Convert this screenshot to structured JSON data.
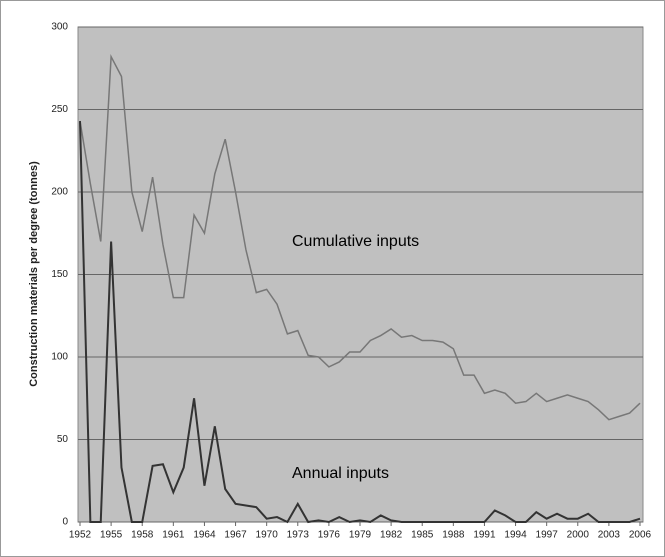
{
  "chart_data": {
    "type": "line",
    "y_label": "Construction materials per degree (tonnes)",
    "x": [
      1952,
      1953,
      1954,
      1955,
      1956,
      1957,
      1958,
      1959,
      1960,
      1961,
      1962,
      1963,
      1964,
      1965,
      1966,
      1967,
      1968,
      1969,
      1970,
      1971,
      1972,
      1973,
      1974,
      1975,
      1976,
      1977,
      1978,
      1979,
      1980,
      1981,
      1982,
      1983,
      1984,
      1985,
      1986,
      1987,
      1988,
      1989,
      1990,
      1991,
      1992,
      1993,
      1994,
      1995,
      1996,
      1997,
      1998,
      1999,
      2000,
      2001,
      2002,
      2003,
      2004,
      2005,
      2006
    ],
    "series": [
      {
        "name": "Cumulative inputs",
        "color": "#777777",
        "values": [
          243,
          205,
          170,
          282,
          270,
          200,
          176,
          209,
          168,
          136,
          136,
          186,
          175,
          211,
          232,
          200,
          165,
          139,
          141,
          132,
          114,
          116,
          101,
          100,
          94,
          97,
          103,
          103,
          110,
          113,
          117,
          112,
          113,
          110,
          110,
          109,
          105,
          89,
          89,
          78,
          80,
          78,
          72,
          73,
          78,
          73,
          75,
          77,
          75,
          73,
          68,
          62,
          64,
          66,
          72
        ]
      },
      {
        "name": "Annual inputs",
        "color": "#333333",
        "values": [
          243,
          0,
          0,
          170,
          33,
          0,
          0,
          34,
          35,
          18,
          33,
          75,
          22,
          58,
          20,
          11,
          10,
          9,
          2,
          3,
          0,
          11,
          0,
          1,
          0,
          3,
          0,
          1,
          0,
          4,
          1,
          0,
          0,
          0,
          0,
          0,
          0,
          0,
          0,
          0,
          7,
          4,
          0,
          0,
          6,
          2,
          5,
          2,
          2,
          5,
          0,
          0,
          0,
          0,
          2
        ]
      }
    ],
    "xlim": [
      1952,
      2006
    ],
    "xticks": [
      1952,
      1955,
      1958,
      1961,
      1964,
      1967,
      1970,
      1973,
      1976,
      1979,
      1982,
      1985,
      1988,
      1991,
      1994,
      1997,
      2000,
      2003,
      2006
    ],
    "ylim": [
      0,
      300
    ],
    "yticks": [
      0,
      50,
      100,
      150,
      200,
      250,
      300
    ],
    "grid": true
  }
}
